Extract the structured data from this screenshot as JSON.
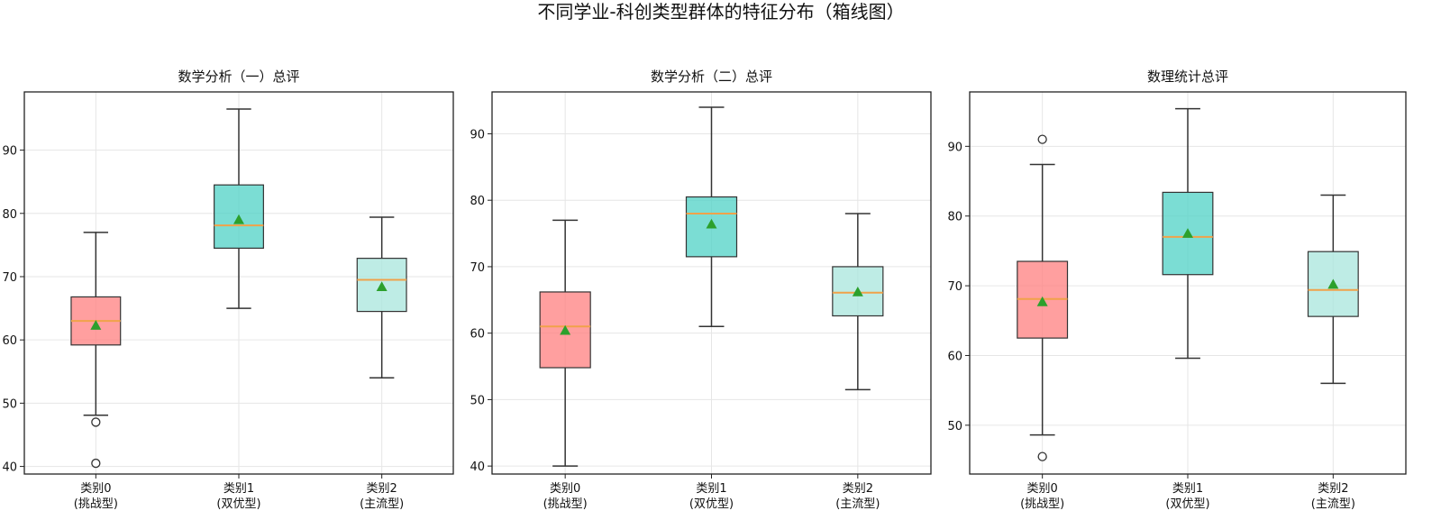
{
  "suptitle": "不同学业-科创类型群体的特征分布（箱线图）",
  "colors": {
    "box": [
      "#ff7f7f",
      "#4fd1c5",
      "#a8e6dc"
    ],
    "median": "#f0a24a",
    "mean": "#2ca02c",
    "whisker": "#333333",
    "grid": "#e6e6e6",
    "axis": "#222222"
  },
  "chart_data": [
    {
      "type": "box",
      "title": "数学分析（一）总评",
      "categories": [
        [
          "类别0",
          "(挑战型)"
        ],
        [
          "类别1",
          "(双优型)"
        ],
        [
          "类别2",
          "(主流型)"
        ]
      ],
      "ylim": [
        38.8,
        99.2
      ],
      "yticks": [
        40,
        50,
        60,
        70,
        80,
        90
      ],
      "grid": true,
      "boxes": [
        {
          "whisker_low": 48.1,
          "q1": 59.2,
          "median": 63.0,
          "q3": 66.8,
          "whisker_high": 77.0,
          "mean": 62.3,
          "outliers": [
            47.0,
            40.5
          ]
        },
        {
          "whisker_low": 65.0,
          "q1": 74.5,
          "median": 78.1,
          "q3": 84.5,
          "whisker_high": 96.5,
          "mean": 79.0,
          "outliers": []
        },
        {
          "whisker_low": 54.0,
          "q1": 64.5,
          "median": 69.5,
          "q3": 72.9,
          "whisker_high": 79.4,
          "mean": 68.4,
          "outliers": []
        }
      ]
    },
    {
      "type": "box",
      "title": "数学分析（二）总评",
      "categories": [
        [
          "类别0",
          "(挑战型)"
        ],
        [
          "类别1",
          "(双优型)"
        ],
        [
          "类别2",
          "(主流型)"
        ]
      ],
      "ylim": [
        38.8,
        96.3
      ],
      "yticks": [
        40,
        50,
        60,
        70,
        80,
        90
      ],
      "grid": true,
      "boxes": [
        {
          "whisker_low": 40.0,
          "q1": 54.8,
          "median": 61.0,
          "q3": 66.2,
          "whisker_high": 77.0,
          "mean": 60.4,
          "outliers": []
        },
        {
          "whisker_low": 61.0,
          "q1": 71.5,
          "median": 78.0,
          "q3": 80.5,
          "whisker_high": 94.0,
          "mean": 76.4,
          "outliers": []
        },
        {
          "whisker_low": 51.5,
          "q1": 62.6,
          "median": 66.1,
          "q3": 70.0,
          "whisker_high": 78.0,
          "mean": 66.2,
          "outliers": []
        }
      ]
    },
    {
      "type": "box",
      "title": "数理统计总评",
      "categories": [
        [
          "类别0",
          "(挑战型)"
        ],
        [
          "类别1",
          "(双优型)"
        ],
        [
          "类别2",
          "(主流型)"
        ]
      ],
      "ylim": [
        43.0,
        97.8
      ],
      "yticks": [
        50,
        60,
        70,
        80,
        90
      ],
      "grid": true,
      "boxes": [
        {
          "whisker_low": 48.6,
          "q1": 62.5,
          "median": 68.1,
          "q3": 73.5,
          "whisker_high": 87.4,
          "mean": 67.7,
          "outliers": [
            91.0,
            45.5
          ]
        },
        {
          "whisker_low": 59.6,
          "q1": 71.6,
          "median": 77.0,
          "q3": 83.4,
          "whisker_high": 95.4,
          "mean": 77.5,
          "outliers": []
        },
        {
          "whisker_low": 56.0,
          "q1": 65.6,
          "median": 69.4,
          "q3": 74.9,
          "whisker_high": 83.0,
          "mean": 70.2,
          "outliers": []
        }
      ]
    }
  ]
}
